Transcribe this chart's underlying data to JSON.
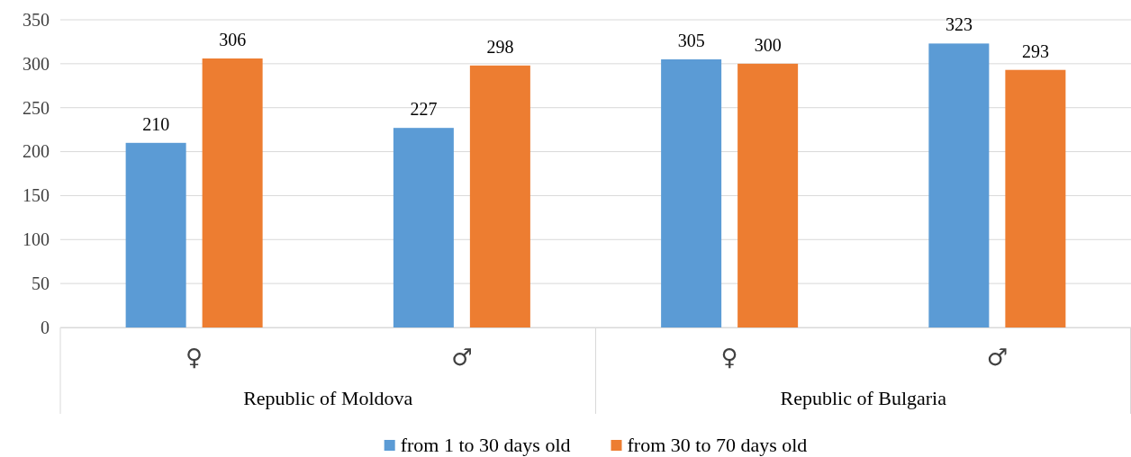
{
  "chart_data": {
    "type": "bar",
    "categories": [
      "♀",
      "♂",
      "♀",
      "♂"
    ],
    "series": [
      {
        "name": "from 1 to 30 days old",
        "color": "#5b9bd5",
        "values": [
          210,
          227,
          305,
          323
        ]
      },
      {
        "name": "from 30 to 70 days old",
        "color": "#ed7d31",
        "values": [
          306,
          298,
          300,
          293
        ]
      }
    ],
    "ylim": [
      0,
      350
    ],
    "yticks": [
      0,
      50,
      100,
      150,
      200,
      250,
      300,
      350
    ],
    "grid": "y",
    "legend": "bottom",
    "data_labels": true,
    "annotations": [
      "Republic of Moldova",
      "Republic of Bulgaria"
    ]
  }
}
